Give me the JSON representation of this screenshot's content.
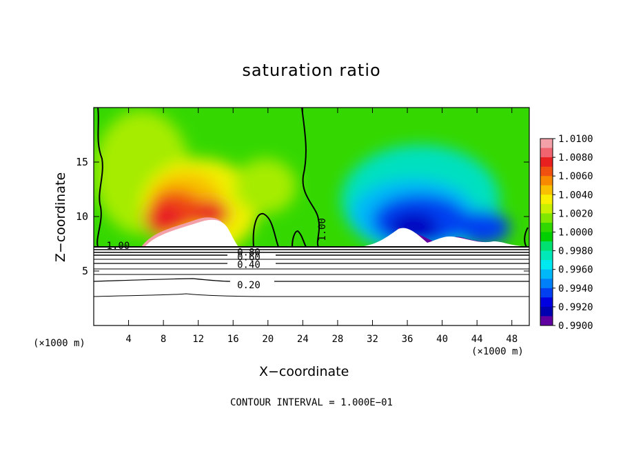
{
  "chart_data": {
    "type": "heatmap",
    "title": "saturation ratio",
    "xlabel": "X−coordinate",
    "ylabel": "Z−coordinate",
    "x_unit_left": "(×1000 m)",
    "x_unit_right": "(×1000 m)",
    "xlim": [
      0,
      50
    ],
    "ylim": [
      0,
      20
    ],
    "x_ticks": [
      4,
      8,
      12,
      16,
      20,
      24,
      28,
      32,
      36,
      40,
      44,
      48
    ],
    "y_ticks": [
      5,
      10,
      15
    ],
    "footer": "CONTOUR INTERVAL = 1.000E−01",
    "colorbar": {
      "labels": [
        "1.0100",
        "1.0080",
        "1.0060",
        "1.0040",
        "1.0020",
        "1.0000",
        "0.9980",
        "0.9960",
        "0.9940",
        "0.9920",
        "0.9900"
      ],
      "min": 0.99,
      "max": 1.01,
      "colors": [
        "#f3a0a8",
        "#f06470",
        "#e82020",
        "#f05010",
        "#f88a00",
        "#f8c000",
        "#f8f000",
        "#c8f000",
        "#80e800",
        "#30d800",
        "#00d000",
        "#00e070",
        "#00e8b8",
        "#00e8f0",
        "#00b8f8",
        "#0080f8",
        "#0040f0",
        "#0000e0",
        "#0000b0",
        "#6000a0"
      ]
    },
    "contour_labels": [
      {
        "text": "1.00",
        "x": 2.8,
        "z": 7.35
      },
      {
        "text": "1.00",
        "x": 26.2,
        "z": 8.8
      },
      {
        "text": "0.80",
        "x": 17.8,
        "z": 6.75
      },
      {
        "text": "0.60",
        "x": 17.8,
        "z": 6.3
      },
      {
        "text": "0.40",
        "x": 17.8,
        "z": 5.6
      },
      {
        "text": "0.20",
        "x": 17.8,
        "z": 3.75
      }
    ]
  }
}
